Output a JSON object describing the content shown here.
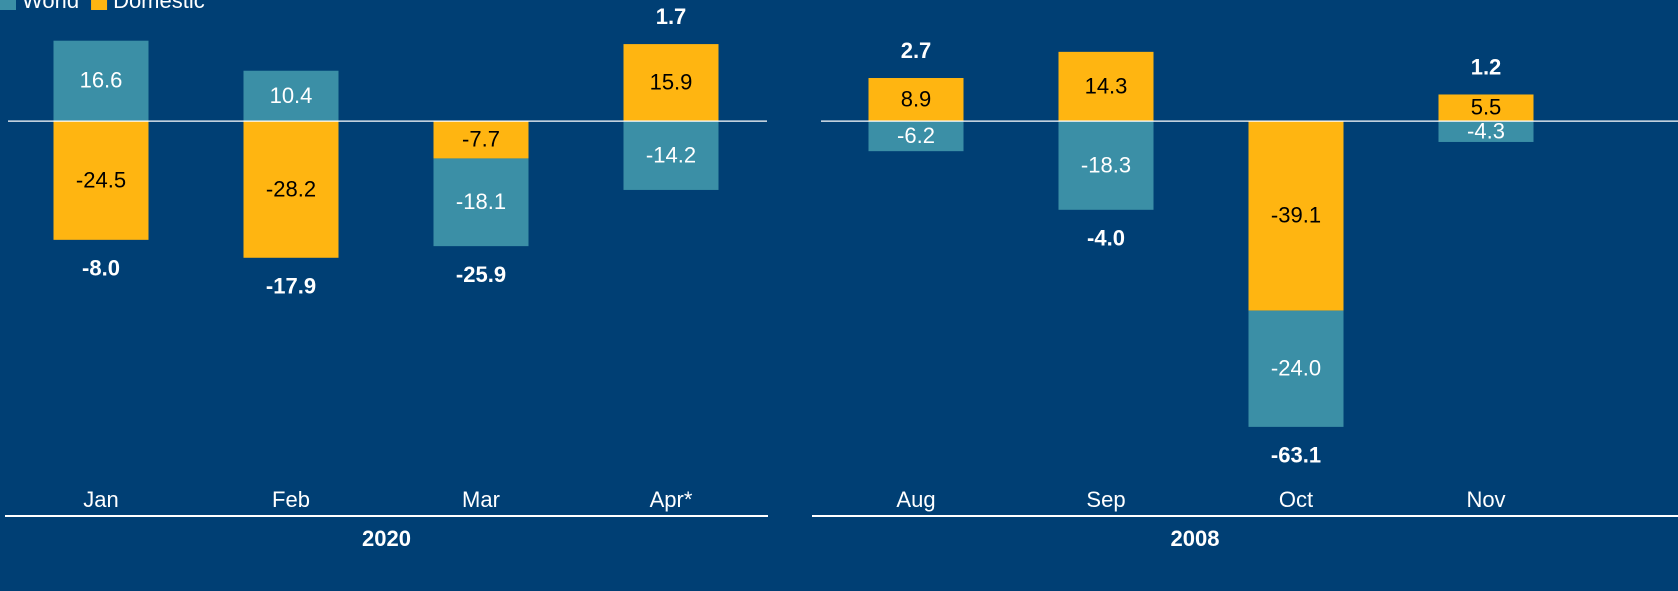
{
  "chart_data": [
    {
      "type": "stacked_bar",
      "xlabel": "2020",
      "categories": [
        "Jan",
        "Feb",
        "Mar",
        "Apr*"
      ],
      "series": [
        {
          "name": "World",
          "color": "#3b8fa6",
          "values": [
            16.6,
            10.4,
            -18.1,
            -14.2
          ]
        },
        {
          "name": "Domestic",
          "color": "#ffb511",
          "values": [
            -24.5,
            -28.2,
            -7.7,
            15.9
          ]
        }
      ],
      "totals": [
        -8.0,
        -17.9,
        -25.9,
        1.7
      ],
      "total_labels": [
        "-8.0",
        "-17.9",
        "-25.9",
        "1.7"
      ],
      "ylim": [
        -72,
        25
      ]
    },
    {
      "type": "stacked_bar",
      "xlabel": "2008",
      "categories": [
        "Aug",
        "Sep",
        "Oct",
        "Nov"
      ],
      "series": [
        {
          "color": "#3b8fa6",
          "values": [
            -6.2,
            -18.3,
            -24.0,
            -4.3
          ],
          "value_labels": [
            "-6.2",
            "-18.3",
            "-24.0",
            "-4.3"
          ]
        },
        {
          "color": "#ffb511",
          "values": [
            8.9,
            14.3,
            -39.1,
            5.5
          ]
        }
      ],
      "totals": [
        2.7,
        -4.0,
        -63.1,
        1.2
      ],
      "total_labels": [
        "2.7",
        "-4.0",
        "-63.1",
        "1.2"
      ],
      "ylim": [
        -72,
        25
      ]
    }
  ]
}
